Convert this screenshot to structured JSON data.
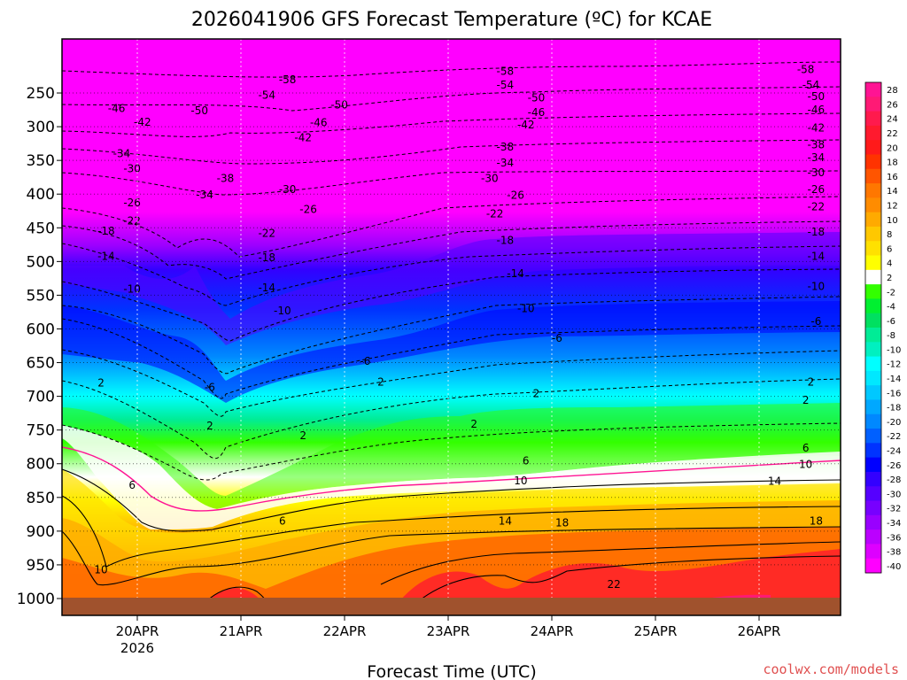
{
  "chart_data": {
    "type": "contour",
    "title": "2026041906 GFS Forecast Temperature (ºC) for KCAE",
    "xlabel": "Forecast Time (UTC)",
    "ylabel": "",
    "credit": "coolwx.com/models",
    "x_ticks": [
      "20APR",
      "21APR",
      "22APR",
      "23APR",
      "24APR",
      "25APR",
      "26APR"
    ],
    "x_subtick": "2026",
    "y_ticks": [
      "250",
      "300",
      "350",
      "400",
      "450",
      "500",
      "550",
      "600",
      "650",
      "700",
      "750",
      "800",
      "850",
      "900",
      "950",
      "1000"
    ],
    "y_tick_values": [
      250,
      300,
      350,
      400,
      450,
      500,
      550,
      600,
      650,
      700,
      750,
      800,
      850,
      900,
      950,
      1000
    ],
    "x_range_days": [
      -0.45,
      6.95
    ],
    "ylim": [
      200,
      1010
    ],
    "colorbar_labels": [
      "28",
      "26",
      "24",
      "22",
      "20",
      "18",
      "16",
      "14",
      "12",
      "10",
      "8",
      "6",
      "4",
      "2",
      "-2",
      "-4",
      "-6",
      "-8",
      "-10",
      "-12",
      "-14",
      "-16",
      "-18",
      "-20",
      "-22",
      "-24",
      "-26",
      "-28",
      "-30",
      "-32",
      "-34",
      "-36",
      "-38",
      "-40"
    ],
    "colorbar_colors": [
      "#ff1493",
      "#ff1a75",
      "#ff1a4d",
      "#ff1a2e",
      "#ff1a1a",
      "#ff3300",
      "#ff5500",
      "#ff7700",
      "#ff8c00",
      "#ffaa00",
      "#ffc800",
      "#ffe100",
      "#ffff00",
      "#ffffff",
      "#33ff00",
      "#00f030",
      "#00e060",
      "#00ec96",
      "#00f0c0",
      "#00ffff",
      "#00e8ff",
      "#00c8ff",
      "#00a8ff",
      "#0088ff",
      "#0060ff",
      "#0033ff",
      "#0000ff",
      "#3300ff",
      "#5500ff",
      "#7700ff",
      "#9900ff",
      "#bb00ff",
      "#dd00ff",
      "#ff00ff"
    ],
    "contour_labels": [
      {
        "text": "-58",
        "day": 3.55,
        "p": 218
      },
      {
        "text": "-58",
        "day": 1.45,
        "p": 230
      },
      {
        "text": "-58",
        "day": 6.45,
        "p": 215
      },
      {
        "text": "-54",
        "day": 3.55,
        "p": 238
      },
      {
        "text": "-54",
        "day": 1.25,
        "p": 253
      },
      {
        "text": "-54",
        "day": 6.5,
        "p": 238
      },
      {
        "text": "-50",
        "day": 3.85,
        "p": 257
      },
      {
        "text": "-50",
        "day": 0.6,
        "p": 276
      },
      {
        "text": "-50",
        "day": 1.95,
        "p": 268
      },
      {
        "text": "-50",
        "day": 6.55,
        "p": 255
      },
      {
        "text": "-46",
        "day": -0.2,
        "p": 273
      },
      {
        "text": "-46",
        "day": 3.85,
        "p": 279
      },
      {
        "text": "-46",
        "day": 6.55,
        "p": 275
      },
      {
        "text": "-46",
        "day": 1.75,
        "p": 294
      },
      {
        "text": "-42",
        "day": 0.05,
        "p": 293
      },
      {
        "text": "-42",
        "day": 3.75,
        "p": 297
      },
      {
        "text": "-42",
        "day": 6.55,
        "p": 302
      },
      {
        "text": "-42",
        "day": 1.6,
        "p": 316
      },
      {
        "text": "-38",
        "day": 3.55,
        "p": 330
      },
      {
        "text": "-38",
        "day": 6.55,
        "p": 327
      },
      {
        "text": "-38",
        "day": 0.85,
        "p": 377
      },
      {
        "text": "-34",
        "day": -0.15,
        "p": 340
      },
      {
        "text": "-34",
        "day": 3.55,
        "p": 354
      },
      {
        "text": "-34",
        "day": 6.55,
        "p": 346
      },
      {
        "text": "-34",
        "day": 0.65,
        "p": 401
      },
      {
        "text": "-30",
        "day": -0.05,
        "p": 362
      },
      {
        "text": "-30",
        "day": 1.45,
        "p": 393
      },
      {
        "text": "-30",
        "day": 3.4,
        "p": 377
      },
      {
        "text": "-30",
        "day": 6.55,
        "p": 368
      },
      {
        "text": "-26",
        "day": -0.05,
        "p": 413
      },
      {
        "text": "-26",
        "day": 1.65,
        "p": 423
      },
      {
        "text": "-26",
        "day": 3.65,
        "p": 402
      },
      {
        "text": "-26",
        "day": 6.55,
        "p": 393
      },
      {
        "text": "-22",
        "day": -0.05,
        "p": 440
      },
      {
        "text": "-22",
        "day": 3.45,
        "p": 429
      },
      {
        "text": "-22",
        "day": 6.55,
        "p": 419
      },
      {
        "text": "-22",
        "day": 1.25,
        "p": 458
      },
      {
        "text": "-18",
        "day": -0.3,
        "p": 455
      },
      {
        "text": "-18",
        "day": 3.55,
        "p": 469
      },
      {
        "text": "-18",
        "day": 6.55,
        "p": 456
      },
      {
        "text": "-18",
        "day": 1.25,
        "p": 494
      },
      {
        "text": "-14",
        "day": -0.3,
        "p": 492
      },
      {
        "text": "-14",
        "day": 3.65,
        "p": 518
      },
      {
        "text": "-14",
        "day": 6.55,
        "p": 492
      },
      {
        "text": "-14",
        "day": 1.25,
        "p": 539
      },
      {
        "text": "-10",
        "day": -0.05,
        "p": 541
      },
      {
        "text": "-10",
        "day": 1.4,
        "p": 573
      },
      {
        "text": "-10",
        "day": 3.75,
        "p": 570
      },
      {
        "text": "-10",
        "day": 6.55,
        "p": 537
      },
      {
        "text": "-6",
        "day": 4.05,
        "p": 614
      },
      {
        "text": "-6",
        "day": 6.55,
        "p": 589
      },
      {
        "text": "-6",
        "day": 2.2,
        "p": 648
      },
      {
        "text": "-6",
        "day": 0.7,
        "p": 687
      },
      {
        "text": "2",
        "day": -0.35,
        "p": 680
      },
      {
        "text": "2",
        "day": 2.35,
        "p": 679
      },
      {
        "text": "2",
        "day": 6.5,
        "p": 679
      },
      {
        "text": "2",
        "day": 3.85,
        "p": 696
      },
      {
        "text": "2",
        "day": 6.45,
        "p": 706
      },
      {
        "text": "2",
        "day": 0.7,
        "p": 744
      },
      {
        "text": "2",
        "day": 1.6,
        "p": 758
      },
      {
        "text": "2",
        "day": 3.25,
        "p": 741
      },
      {
        "text": "6",
        "day": 3.75,
        "p": 796
      },
      {
        "text": "6",
        "day": 6.45,
        "p": 777
      },
      {
        "text": "6",
        "day": -0.05,
        "p": 832
      },
      {
        "text": "6",
        "day": 1.4,
        "p": 885
      },
      {
        "text": "10",
        "day": 3.7,
        "p": 825
      },
      {
        "text": "10",
        "day": 6.45,
        "p": 801
      },
      {
        "text": "10",
        "day": -0.35,
        "p": 957
      },
      {
        "text": "14",
        "day": 3.55,
        "p": 885
      },
      {
        "text": "14",
        "day": 6.15,
        "p": 826
      },
      {
        "text": "18",
        "day": 4.1,
        "p": 888
      },
      {
        "text": "18",
        "day": 6.55,
        "p": 885
      },
      {
        "text": "22",
        "day": 4.6,
        "p": 979
      }
    ]
  }
}
